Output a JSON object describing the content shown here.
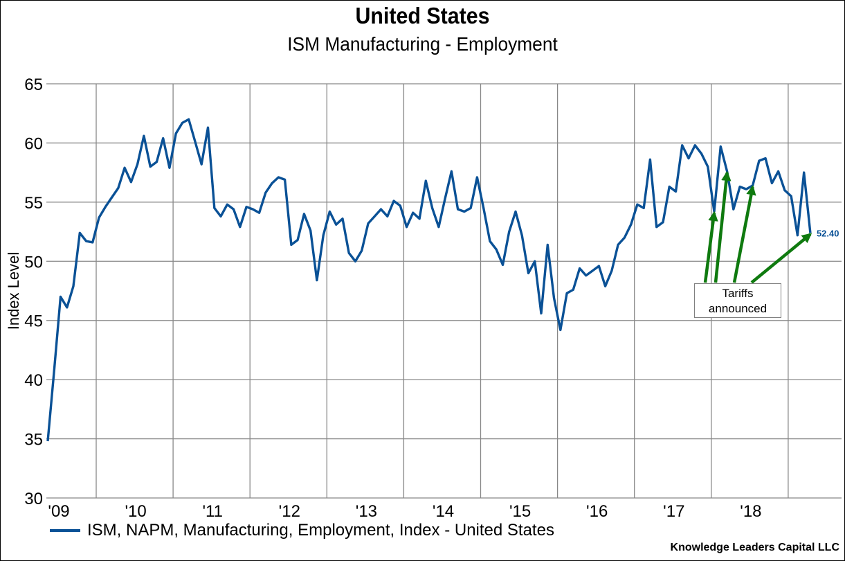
{
  "chart_data": {
    "type": "line",
    "title": "United States",
    "subtitle": "ISM Manufacturing - Employment",
    "xlabel": "",
    "ylabel": "Index Level",
    "ylim": [
      30,
      65
    ],
    "y_ticks": [
      30,
      35,
      40,
      45,
      50,
      55,
      60,
      65
    ],
    "x_tick_labels": [
      "'09",
      "'10",
      "'11",
      "'12",
      "'13",
      "'14",
      "'15",
      "'16",
      "'17",
      "'18"
    ],
    "grid": true,
    "legend_position": "bottom-left",
    "x_start": "2009-01",
    "x_frequency": "monthly",
    "series": [
      {
        "name": "ISM, NAPM, Manufacturing, Employment, Index - United States",
        "color": "#0a5196",
        "values": [
          34.8,
          40.8,
          47.0,
          46.1,
          47.9,
          52.4,
          51.7,
          51.6,
          53.7,
          54.6,
          55.4,
          56.2,
          57.9,
          56.7,
          58.2,
          60.6,
          58.0,
          58.4,
          60.4,
          57.9,
          60.8,
          61.7,
          62.0,
          60.1,
          58.2,
          61.3,
          54.5,
          53.8,
          54.8,
          54.4,
          52.9,
          54.6,
          54.4,
          54.1,
          55.8,
          56.6,
          57.1,
          56.9,
          51.4,
          51.8,
          54.0,
          52.6,
          48.4,
          52.2,
          54.2,
          53.1,
          53.6,
          50.7,
          50.0,
          50.9,
          53.2,
          53.8,
          54.4,
          53.8,
          55.1,
          54.7,
          52.9,
          54.1,
          53.6,
          56.8,
          54.5,
          52.9,
          55.3,
          57.6,
          54.4,
          54.2,
          54.5,
          57.1,
          54.5,
          51.7,
          51.0,
          49.7,
          52.5,
          54.2,
          52.2,
          49.0,
          50.0,
          45.6,
          51.4,
          46.9,
          44.2,
          47.3,
          47.6,
          49.4,
          48.8,
          49.2,
          49.6,
          47.9,
          49.2,
          51.4,
          52.0,
          53.1,
          54.8,
          54.5,
          58.6,
          52.9,
          53.3,
          56.3,
          55.9,
          59.8,
          58.7,
          59.8,
          59.1,
          58.0,
          54.2,
          59.7,
          57.6,
          54.4,
          56.3,
          56.1,
          56.4,
          58.5,
          58.7,
          56.6,
          57.6,
          56.0,
          55.5,
          52.2,
          57.5,
          52.4
        ]
      }
    ],
    "annotations": [
      {
        "type": "end-value-label",
        "text": "52.40"
      },
      {
        "type": "callout",
        "text_lines": [
          "Tariffs",
          "announced"
        ],
        "arrow_color": "#0f7a0f",
        "arrow_targets_month_index": [
          104,
          106,
          110,
          119
        ]
      }
    ]
  },
  "footer": {
    "credit": "Knowledge Leaders Capital LLC"
  }
}
